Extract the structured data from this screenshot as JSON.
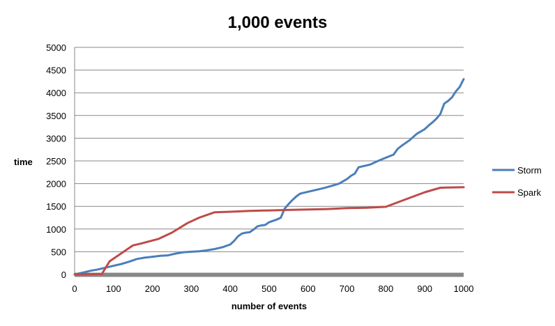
{
  "chart_data": {
    "type": "line",
    "title": "1,000 events",
    "xlabel": "number of events",
    "ylabel": "time",
    "xlim": [
      0,
      1000
    ],
    "ylim": [
      0,
      5000
    ],
    "x_ticks": [
      "0",
      "100",
      "200",
      "300",
      "400",
      "500",
      "600",
      "700",
      "800",
      "900",
      "1000"
    ],
    "y_ticks": [
      "0",
      "500",
      "1000",
      "1500",
      "2000",
      "2500",
      "3000",
      "3500",
      "4000",
      "4500",
      "5000"
    ],
    "grid": "horizontal",
    "legend_position": "right",
    "series": [
      {
        "name": "Storm",
        "color": "#4a7ebb",
        "points": [
          [
            0,
            0
          ],
          [
            20,
            40
          ],
          [
            40,
            80
          ],
          [
            60,
            110
          ],
          [
            80,
            150
          ],
          [
            100,
            190
          ],
          [
            120,
            230
          ],
          [
            140,
            280
          ],
          [
            160,
            340
          ],
          [
            180,
            370
          ],
          [
            200,
            390
          ],
          [
            220,
            410
          ],
          [
            240,
            420
          ],
          [
            260,
            460
          ],
          [
            280,
            490
          ],
          [
            300,
            500
          ],
          [
            320,
            510
          ],
          [
            340,
            530
          ],
          [
            360,
            560
          ],
          [
            380,
            600
          ],
          [
            400,
            660
          ],
          [
            410,
            740
          ],
          [
            420,
            840
          ],
          [
            430,
            900
          ],
          [
            440,
            920
          ],
          [
            450,
            930
          ],
          [
            460,
            990
          ],
          [
            470,
            1060
          ],
          [
            480,
            1080
          ],
          [
            490,
            1090
          ],
          [
            500,
            1150
          ],
          [
            510,
            1180
          ],
          [
            520,
            1210
          ],
          [
            530,
            1250
          ],
          [
            540,
            1450
          ],
          [
            550,
            1550
          ],
          [
            560,
            1640
          ],
          [
            570,
            1720
          ],
          [
            580,
            1780
          ],
          [
            600,
            1820
          ],
          [
            620,
            1860
          ],
          [
            640,
            1900
          ],
          [
            660,
            1950
          ],
          [
            680,
            2000
          ],
          [
            700,
            2100
          ],
          [
            710,
            2170
          ],
          [
            720,
            2220
          ],
          [
            730,
            2360
          ],
          [
            740,
            2380
          ],
          [
            760,
            2420
          ],
          [
            780,
            2500
          ],
          [
            800,
            2570
          ],
          [
            820,
            2640
          ],
          [
            830,
            2760
          ],
          [
            840,
            2830
          ],
          [
            860,
            2950
          ],
          [
            880,
            3100
          ],
          [
            900,
            3200
          ],
          [
            910,
            3280
          ],
          [
            920,
            3350
          ],
          [
            930,
            3430
          ],
          [
            940,
            3530
          ],
          [
            950,
            3760
          ],
          [
            960,
            3820
          ],
          [
            970,
            3900
          ],
          [
            980,
            4030
          ],
          [
            990,
            4130
          ],
          [
            1000,
            4300
          ]
        ]
      },
      {
        "name": "Spark",
        "color": "#be4b48",
        "points": [
          [
            0,
            0
          ],
          [
            70,
            10
          ],
          [
            90,
            290
          ],
          [
            150,
            640
          ],
          [
            170,
            680
          ],
          [
            215,
            780
          ],
          [
            250,
            920
          ],
          [
            290,
            1130
          ],
          [
            320,
            1250
          ],
          [
            360,
            1370
          ],
          [
            400,
            1380
          ],
          [
            450,
            1400
          ],
          [
            500,
            1410
          ],
          [
            550,
            1420
          ],
          [
            600,
            1430
          ],
          [
            650,
            1440
          ],
          [
            700,
            1460
          ],
          [
            750,
            1470
          ],
          [
            800,
            1490
          ],
          [
            850,
            1650
          ],
          [
            900,
            1810
          ],
          [
            940,
            1910
          ],
          [
            1000,
            1920
          ]
        ]
      }
    ]
  }
}
